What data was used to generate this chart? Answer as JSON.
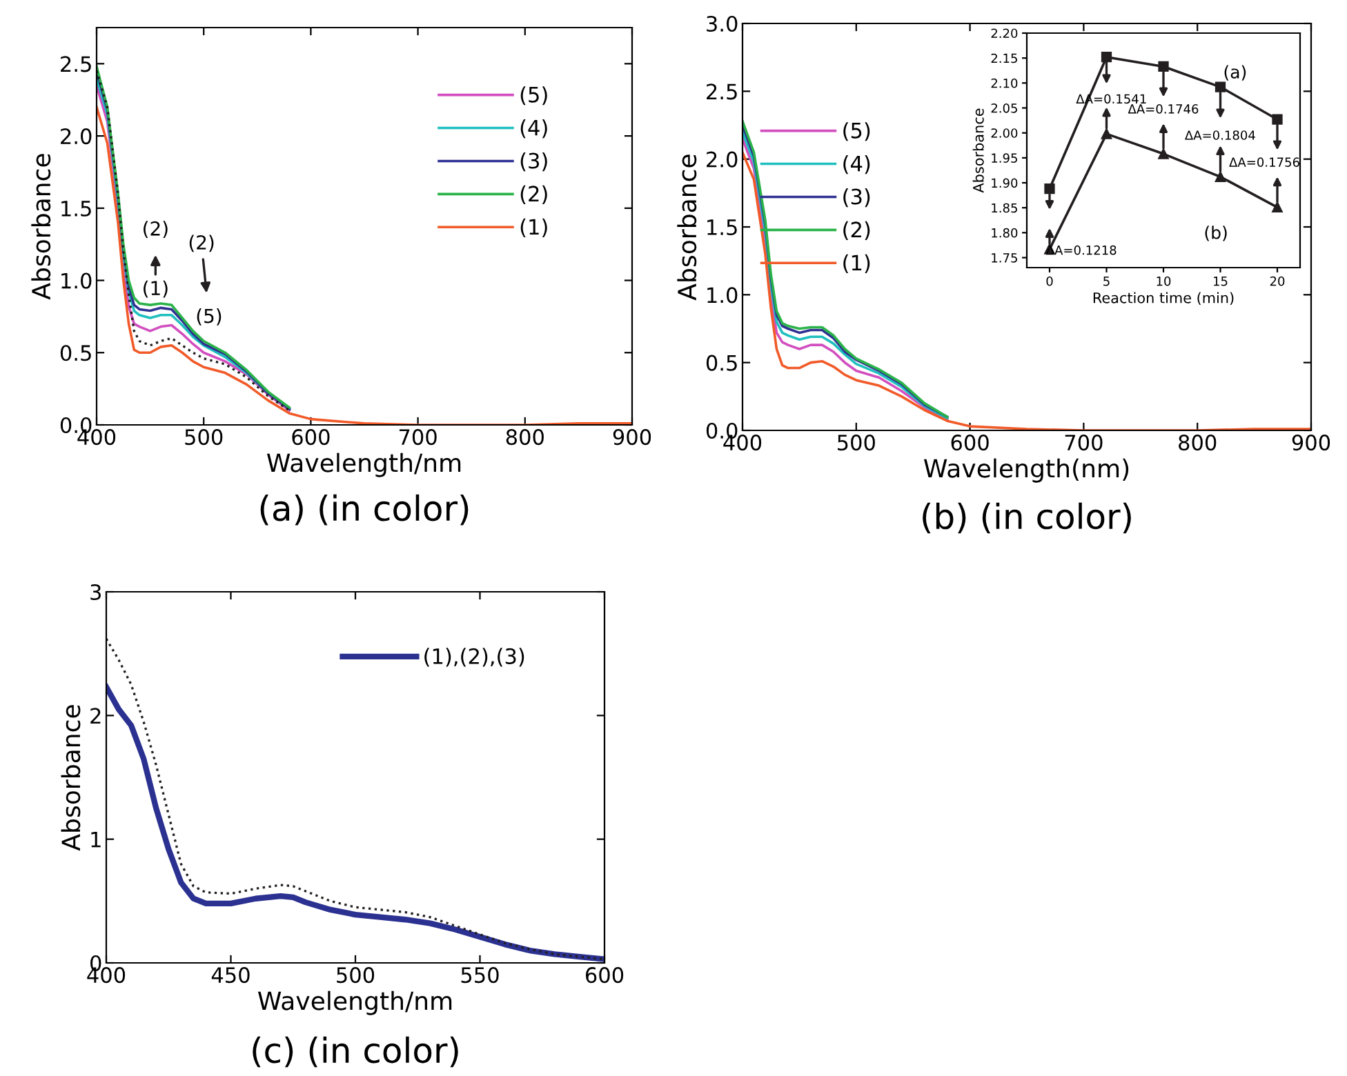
{
  "chart_data": [
    {
      "type": "line",
      "title": "(a) (in color)",
      "xlabel": "Wavelength/nm",
      "ylabel": "Absorbance",
      "xlim": [
        400,
        900
      ],
      "xticks": [
        400,
        500,
        600,
        700,
        800,
        900
      ],
      "ylim": [
        0,
        2.75
      ],
      "yticks": [
        {
          "value": 0,
          "label": "0.0"
        },
        {
          "value": 0.5,
          "label": "0.5"
        },
        {
          "value": 1.0,
          "label": "1.0"
        },
        {
          "value": 1.5,
          "label": "1.5"
        },
        {
          "value": 2.0,
          "label": "2.0"
        },
        {
          "value": 2.5,
          "label": "2.5"
        }
      ],
      "grid": false,
      "legend": "top right",
      "x": [
        400,
        410,
        420,
        425,
        430,
        435,
        440,
        450,
        460,
        470,
        480,
        490,
        500,
        520,
        540,
        560,
        580,
        600,
        650,
        700,
        800,
        850,
        900
      ],
      "series": [
        {
          "name": "(5)",
          "color": "#d24fbf",
          "values": [
            2.35,
            2.1,
            1.5,
            1.1,
            0.82,
            0.7,
            0.68,
            0.65,
            0.68,
            0.69,
            0.63,
            0.56,
            0.5,
            0.44,
            0.35,
            0.21,
            0.1,
            null,
            null,
            null,
            null,
            null,
            null
          ]
        },
        {
          "name": "(4)",
          "color": "#1fbfbf",
          "values": [
            2.4,
            2.15,
            1.55,
            1.18,
            0.92,
            0.79,
            0.76,
            0.74,
            0.76,
            0.76,
            0.69,
            0.61,
            0.55,
            0.47,
            0.36,
            0.22,
            0.11,
            null,
            null,
            null,
            null,
            null,
            null
          ]
        },
        {
          "name": "(3)",
          "color": "#2e3192",
          "values": [
            2.45,
            2.18,
            1.58,
            1.22,
            0.96,
            0.83,
            0.8,
            0.79,
            0.81,
            0.8,
            0.72,
            0.63,
            0.56,
            0.49,
            0.37,
            0.22,
            0.11,
            null,
            null,
            null,
            null,
            null,
            null
          ]
        },
        {
          "name": "(2)",
          "color": "#2bb34a",
          "values": [
            2.48,
            2.2,
            1.6,
            1.25,
            1.0,
            0.88,
            0.84,
            0.83,
            0.84,
            0.83,
            0.74,
            0.65,
            0.58,
            0.5,
            0.38,
            0.23,
            0.12,
            null,
            null,
            null,
            null,
            null,
            null
          ]
        },
        {
          "name": "(1)",
          "color": "#f15a29",
          "values": [
            2.2,
            1.95,
            1.4,
            1.0,
            0.7,
            0.52,
            0.5,
            0.5,
            0.54,
            0.55,
            0.5,
            0.44,
            0.4,
            0.36,
            0.28,
            0.17,
            0.08,
            0.04,
            0.01,
            0.0,
            0.0,
            0.01,
            0.01
          ]
        },
        {
          "color": "#231f20",
          "line_style": "dotted",
          "values": [
            2.45,
            2.2,
            1.6,
            1.2,
            0.9,
            0.65,
            0.58,
            0.55,
            0.58,
            0.6,
            0.55,
            0.5,
            0.46,
            0.42,
            0.33,
            0.2,
            0.1,
            null,
            null,
            null,
            null,
            null,
            null
          ]
        }
      ],
      "annotations": [
        "(1)",
        "(2)",
        "(2)",
        "(5)"
      ]
    },
    {
      "type": "line",
      "title": "(b) (in color)",
      "xlabel": "Wavelength(nm)",
      "ylabel": "Absorbance",
      "xlim": [
        400,
        900
      ],
      "xticks": [
        400,
        500,
        600,
        700,
        800,
        900
      ],
      "ylim": [
        0,
        3.0
      ],
      "yticks": [
        {
          "value": 0,
          "label": "0.0"
        },
        {
          "value": 0.5,
          "label": "0.5"
        },
        {
          "value": 1.0,
          "label": "1.0"
        },
        {
          "value": 1.5,
          "label": "1.5"
        },
        {
          "value": 2.0,
          "label": "2.0"
        },
        {
          "value": 2.5,
          "label": "2.5"
        },
        {
          "value": 3.0,
          "label": "3.0"
        }
      ],
      "grid": false,
      "legend": "left",
      "x": [
        400,
        410,
        420,
        425,
        430,
        435,
        440,
        450,
        460,
        470,
        480,
        490,
        500,
        520,
        540,
        560,
        580,
        600,
        650,
        700,
        800,
        850,
        900
      ],
      "series": [
        {
          "name": "(5)",
          "color": "#d24fbf",
          "values": [
            2.15,
            1.93,
            1.4,
            1.0,
            0.72,
            0.65,
            0.63,
            0.6,
            0.63,
            0.63,
            0.58,
            0.5,
            0.44,
            0.39,
            0.29,
            0.17,
            0.08,
            null,
            null,
            null,
            null,
            null,
            null
          ]
        },
        {
          "name": "(4)",
          "color": "#1fbfbf",
          "values": [
            2.2,
            1.98,
            1.47,
            1.07,
            0.8,
            0.72,
            0.7,
            0.67,
            0.69,
            0.69,
            0.64,
            0.56,
            0.49,
            0.42,
            0.32,
            0.18,
            0.09,
            null,
            null,
            null,
            null,
            null,
            null
          ]
        },
        {
          "name": "(3)",
          "color": "#2e3192",
          "values": [
            2.25,
            2.02,
            1.52,
            1.12,
            0.85,
            0.77,
            0.75,
            0.72,
            0.74,
            0.74,
            0.68,
            0.58,
            0.52,
            0.44,
            0.34,
            0.19,
            0.1,
            null,
            null,
            null,
            null,
            null,
            null
          ]
        },
        {
          "name": "(2)",
          "color": "#2bb34a",
          "values": [
            2.28,
            2.05,
            1.55,
            1.15,
            0.88,
            0.79,
            0.77,
            0.75,
            0.76,
            0.76,
            0.7,
            0.6,
            0.53,
            0.45,
            0.35,
            0.2,
            0.1,
            null,
            null,
            null,
            null,
            null,
            null
          ]
        },
        {
          "name": "(1)",
          "color": "#f15a29",
          "values": [
            2.05,
            1.85,
            1.3,
            0.9,
            0.6,
            0.48,
            0.46,
            0.46,
            0.5,
            0.51,
            0.47,
            0.41,
            0.37,
            0.33,
            0.25,
            0.15,
            0.07,
            0.03,
            0.01,
            0.0,
            0.0,
            0.01,
            0.01
          ]
        }
      ]
    },
    {
      "type": "line",
      "xlabel": "Reaction time (min)",
      "ylabel": "Absorbance",
      "xlim": [
        -2,
        22
      ],
      "xticks": [
        0,
        5,
        10,
        15,
        20
      ],
      "ylim": [
        1.73,
        2.2
      ],
      "yticks": [
        {
          "value": 1.75,
          "label": "1.75"
        },
        {
          "value": 1.8,
          "label": "1.80"
        },
        {
          "value": 1.85,
          "label": "1.85"
        },
        {
          "value": 1.9,
          "label": "1.90"
        },
        {
          "value": 1.95,
          "label": "1.95"
        },
        {
          "value": 2.0,
          "label": "2.00"
        },
        {
          "value": 2.05,
          "label": "2.05"
        },
        {
          "value": 2.1,
          "label": "2.10"
        },
        {
          "value": 2.15,
          "label": "2.15"
        },
        {
          "value": 2.2,
          "label": "2.20"
        }
      ],
      "grid": false,
      "legend": "right",
      "x": [
        0,
        5,
        10,
        15,
        20
      ],
      "series": [
        {
          "name": "(a)",
          "color": "#231f20",
          "marker": "square",
          "values": [
            1.888,
            2.152,
            2.133,
            2.092,
            2.027
          ]
        },
        {
          "name": "(b)",
          "color": "#231f20",
          "marker": "triangle",
          "values": [
            1.767,
            1.998,
            1.958,
            1.912,
            1.851
          ]
        }
      ],
      "annotations": [
        "ΔA=0.1218",
        "ΔA=0.1541",
        "ΔA=0.1746",
        "ΔA=0.1804",
        "ΔA=0.1756"
      ]
    },
    {
      "type": "line",
      "title": "(c) (in color)",
      "xlabel": "Wavelength/nm",
      "ylabel": "Absorbance",
      "xlim": [
        400,
        600
      ],
      "xticks": [
        400,
        450,
        500,
        550,
        600
      ],
      "ylim": [
        0,
        3
      ],
      "yticks": [
        0,
        1,
        2,
        3
      ],
      "grid": false,
      "legend": "top right",
      "x": [
        400,
        405,
        410,
        415,
        420,
        425,
        430,
        435,
        440,
        450,
        460,
        470,
        475,
        480,
        490,
        500,
        510,
        520,
        530,
        540,
        550,
        560,
        570,
        580,
        590,
        600
      ],
      "series": [
        {
          "name": "(1),(2),(3)",
          "color": "#2b3190",
          "values": [
            2.23,
            2.05,
            1.92,
            1.65,
            1.25,
            0.92,
            0.65,
            0.52,
            0.48,
            0.48,
            0.52,
            0.54,
            0.53,
            0.49,
            0.43,
            0.39,
            0.37,
            0.35,
            0.32,
            0.27,
            0.21,
            0.15,
            0.1,
            0.07,
            0.05,
            0.03
          ]
        },
        {
          "color": "#231f20",
          "line_style": "dotted",
          "values": [
            2.62,
            2.45,
            2.25,
            1.95,
            1.6,
            1.2,
            0.8,
            0.62,
            0.57,
            0.56,
            0.6,
            0.63,
            0.62,
            0.58,
            0.5,
            0.45,
            0.43,
            0.41,
            0.37,
            0.3,
            0.23,
            0.16,
            0.11,
            0.07,
            0.05,
            0.03
          ]
        }
      ]
    }
  ]
}
